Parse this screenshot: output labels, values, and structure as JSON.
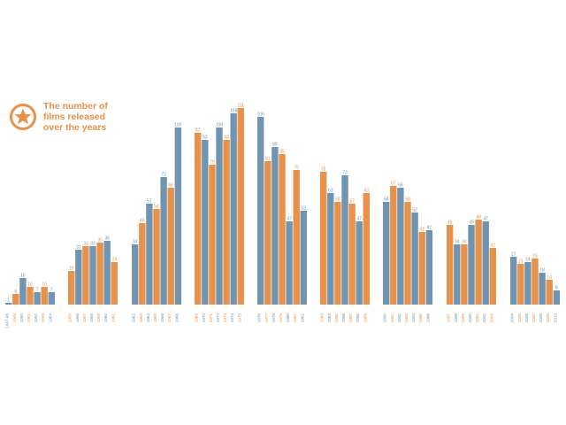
{
  "title": "The number of\nfilms released\nover the years",
  "colors": {
    "blue": "#7195b0",
    "orange": "#e8914a",
    "blue_text": "#7195b0",
    "orange_text": "#e8914a"
  },
  "chart_data": {
    "type": "bar",
    "title": "The number of films released over the years",
    "xlabel": "",
    "ylabel": "",
    "ylim": [
      0,
      111
    ],
    "grid": false,
    "groups": [
      {
        "categories": [
          "1947-48",
          "1949",
          "1950",
          "1951",
          "1952",
          "1953",
          "1954"
        ],
        "values": [
          1,
          6,
          15,
          10,
          7,
          10,
          7
        ]
      },
      {
        "categories": [
          "1955",
          "1956",
          "1957",
          "1958",
          "1959",
          "1960",
          "1961"
        ],
        "values": [
          19,
          31,
          33,
          33,
          35,
          36,
          24
        ]
      },
      {
        "categories": [
          "1962",
          "1963",
          "1964",
          "1965",
          "1966",
          "1967",
          "1968"
        ],
        "values": [
          34,
          46,
          57,
          54,
          72,
          66,
          100
        ]
      },
      {
        "categories": [
          "1969",
          "1970",
          "1971",
          "1972",
          "1973",
          "1974",
          "1975"
        ],
        "values": [
          97,
          93,
          79,
          100,
          93,
          108,
          111
        ]
      },
      {
        "categories": [
          "1976",
          "1977",
          "1978",
          "1979",
          "1980",
          "1981",
          "1982"
        ],
        "values": [
          106,
          81,
          89,
          85,
          47,
          76,
          53
        ]
      },
      {
        "categories": [
          "1983",
          "1984",
          "1985",
          "1986",
          "1987",
          "1988",
          "1989"
        ],
        "values": [
          75,
          63,
          58,
          73,
          57,
          47,
          63
        ]
      },
      {
        "categories": [
          "1990",
          "1991",
          "1992",
          "1993",
          "1994",
          "1995",
          "1996"
        ],
        "values": [
          58,
          67,
          66,
          58,
          52,
          41,
          42
        ]
      },
      {
        "categories": [
          "1997",
          "1998",
          "1999",
          "2000",
          "2001",
          "2002",
          "2003"
        ],
        "values": [
          45,
          34,
          34,
          45,
          48,
          47,
          32
        ]
      },
      {
        "categories": [
          "2004",
          "2005",
          "2006",
          "2007",
          "2008",
          "2009",
          "2010"
        ],
        "values": [
          27,
          23,
          24,
          26,
          18,
          14,
          8
        ]
      }
    ]
  }
}
